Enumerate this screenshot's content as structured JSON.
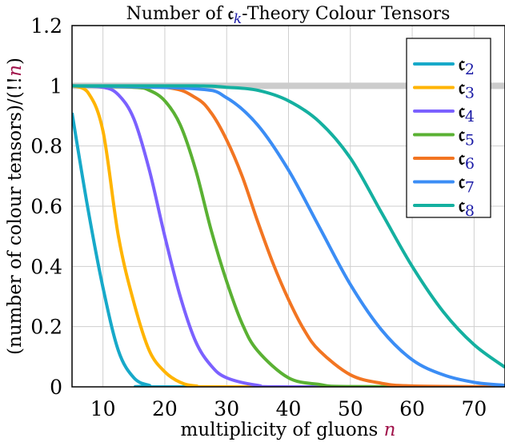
{
  "chart_data": {
    "type": "line",
    "title": {
      "prefix": "Number of ",
      "symbol": "𝔠",
      "subscript": "k",
      "suffix": "-Theory Colour Tensors"
    },
    "xlabel": {
      "text": "multiplicity of gluons ",
      "var": "n"
    },
    "ylabel": {
      "text": "(number of colour tensors)/(!!",
      "var": "n",
      "close": ")"
    },
    "xlim": [
      5,
      75
    ],
    "ylim": [
      0,
      1.2
    ],
    "xticks": [
      10,
      20,
      30,
      40,
      50,
      60,
      70
    ],
    "yticks": [
      0,
      0.2,
      0.4,
      0.6,
      0.8,
      1,
      1.2
    ],
    "ytick_labels": [
      "0",
      "0.2",
      "0.4",
      "0.6",
      "0.8",
      "1",
      "1.2"
    ],
    "grid": true,
    "legend_position": "top-right",
    "reference_line": {
      "y": 1,
      "color": "#cccccc"
    },
    "colors": {
      "variable": "#a0124a",
      "subscript": "#1a1aa6"
    },
    "series": [
      {
        "name": "𝔠",
        "sub": "2",
        "color": "#17a9c9",
        "points": [
          [
            5,
            0.91
          ],
          [
            7.5,
            0.6
          ],
          [
            10,
            0.33
          ],
          [
            12.5,
            0.12
          ],
          [
            15,
            0.03
          ],
          [
            17.5,
            0.005
          ],
          [
            20,
            0
          ],
          [
            75,
            0
          ]
        ]
      },
      {
        "name": "𝔠",
        "sub": "3",
        "color": "#ffb400",
        "points": [
          [
            5,
            1
          ],
          [
            7.5,
            0.98
          ],
          [
            10,
            0.85
          ],
          [
            12.5,
            0.5
          ],
          [
            15,
            0.28
          ],
          [
            17.5,
            0.12
          ],
          [
            20,
            0.05
          ],
          [
            22.5,
            0.015
          ],
          [
            25,
            0.003
          ],
          [
            30,
            0
          ],
          [
            75,
            0
          ]
        ]
      },
      {
        "name": "𝔠",
        "sub": "4",
        "color": "#7b61ff",
        "points": [
          [
            5,
            1
          ],
          [
            10,
            0.995
          ],
          [
            12.5,
            0.97
          ],
          [
            15,
            0.89
          ],
          [
            17.5,
            0.72
          ],
          [
            20,
            0.5
          ],
          [
            22.5,
            0.3
          ],
          [
            25,
            0.15
          ],
          [
            27.5,
            0.07
          ],
          [
            30,
            0.03
          ],
          [
            35,
            0.005
          ],
          [
            40,
            0
          ],
          [
            75,
            0
          ]
        ]
      },
      {
        "name": "𝔠",
        "sub": "5",
        "color": "#5ab133",
        "points": [
          [
            5,
            1
          ],
          [
            15,
            0.995
          ],
          [
            17.5,
            0.985
          ],
          [
            20,
            0.95
          ],
          [
            22.5,
            0.87
          ],
          [
            25,
            0.72
          ],
          [
            27.5,
            0.52
          ],
          [
            30,
            0.35
          ],
          [
            32.5,
            0.21
          ],
          [
            35,
            0.12
          ],
          [
            40,
            0.03
          ],
          [
            45,
            0.008
          ],
          [
            50,
            0.001
          ],
          [
            75,
            0
          ]
        ]
      },
      {
        "name": "𝔠",
        "sub": "6",
        "color": "#f27522",
        "points": [
          [
            5,
            1
          ],
          [
            20,
            0.995
          ],
          [
            25,
            0.96
          ],
          [
            27.5,
            0.91
          ],
          [
            30,
            0.82
          ],
          [
            32.5,
            0.7
          ],
          [
            35,
            0.55
          ],
          [
            37.5,
            0.41
          ],
          [
            40,
            0.29
          ],
          [
            42.5,
            0.19
          ],
          [
            45,
            0.12
          ],
          [
            50,
            0.04
          ],
          [
            55,
            0.012
          ],
          [
            60,
            0.003
          ],
          [
            75,
            0
          ]
        ]
      },
      {
        "name": "𝔠",
        "sub": "7",
        "color": "#3b8df5",
        "points": [
          [
            5,
            1
          ],
          [
            25,
            0.99
          ],
          [
            30,
            0.96
          ],
          [
            35,
            0.87
          ],
          [
            40,
            0.72
          ],
          [
            45,
            0.53
          ],
          [
            50,
            0.34
          ],
          [
            55,
            0.19
          ],
          [
            60,
            0.09
          ],
          [
            65,
            0.04
          ],
          [
            70,
            0.015
          ],
          [
            75,
            0.005
          ]
        ]
      },
      {
        "name": "𝔠",
        "sub": "8",
        "color": "#14b0a0",
        "points": [
          [
            5,
            1
          ],
          [
            25,
            1
          ],
          [
            30,
            0.995
          ],
          [
            35,
            0.985
          ],
          [
            40,
            0.95
          ],
          [
            45,
            0.88
          ],
          [
            50,
            0.76
          ],
          [
            55,
            0.58
          ],
          [
            60,
            0.4
          ],
          [
            65,
            0.25
          ],
          [
            70,
            0.14
          ],
          [
            75,
            0.065
          ]
        ]
      }
    ]
  }
}
